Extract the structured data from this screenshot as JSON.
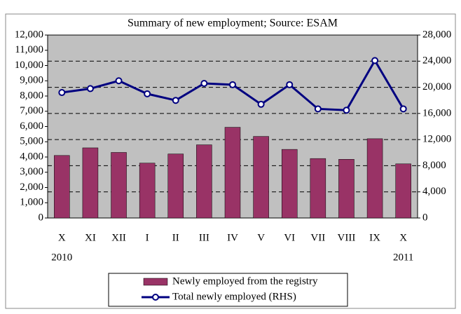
{
  "chart_data": {
    "type": "bar-line",
    "title": "Summary of new employment; Source: ESAM",
    "categories": [
      "X",
      "XI",
      "XII",
      "I",
      "II",
      "III",
      "IV",
      "V",
      "VI",
      "VII",
      "VIII",
      "IX",
      "X"
    ],
    "x_sublabels": [
      "2010",
      null,
      null,
      null,
      null,
      null,
      null,
      null,
      null,
      null,
      null,
      null,
      "2011"
    ],
    "series": [
      {
        "name": "Newly employed from the registry",
        "type": "bar",
        "color": "#993366",
        "values": [
          4100,
          4600,
          4300,
          3600,
          4200,
          4800,
          5950,
          5350,
          4500,
          3900,
          3850,
          5200,
          3550
        ]
      },
      {
        "name": "Total newly employed (RHS)",
        "type": "line",
        "color": "#000080",
        "axis": "y2",
        "values": [
          19200,
          19800,
          21000,
          19000,
          18000,
          20600,
          20400,
          17400,
          20400,
          16700,
          16500,
          24100,
          16700
        ]
      }
    ],
    "ylim": [
      0,
      12000
    ],
    "yticks": [
      0,
      {
        "value": 1000,
        "label": "1,000"
      },
      {
        "value": 2000,
        "label": "2,000"
      },
      {
        "value": 3000,
        "label": "3,000"
      },
      {
        "value": 4000,
        "label": "4,000"
      },
      {
        "value": 5000,
        "label": "5,000"
      },
      {
        "value": 6000,
        "label": "6,000"
      },
      {
        "value": 7000,
        "label": "7,000"
      },
      {
        "value": 8000,
        "label": "8,000"
      },
      {
        "value": 9000,
        "label": "9,000"
      },
      {
        "value": 10000,
        "label": "10,000"
      },
      {
        "value": 11000,
        "label": "11,000"
      },
      {
        "value": 12000,
        "label": "12,000"
      }
    ],
    "y2lim": [
      0,
      28000
    ],
    "y2ticks": [
      0,
      {
        "value": 4000,
        "label": "4,000"
      },
      {
        "value": 8000,
        "label": "8,000"
      },
      {
        "value": 12000,
        "label": "12,000"
      },
      {
        "value": 16000,
        "label": "16,000"
      },
      {
        "value": 20000,
        "label": "20,000"
      },
      {
        "value": 24000,
        "label": "24,000"
      },
      {
        "value": 28000,
        "label": "28,000"
      }
    ],
    "grid": true,
    "legend": "bottom"
  }
}
